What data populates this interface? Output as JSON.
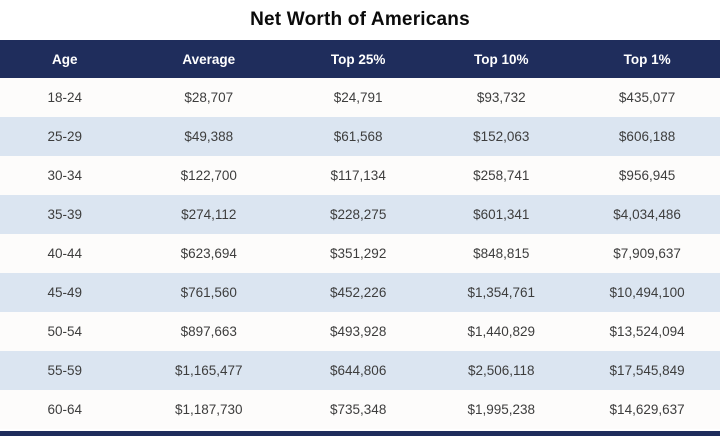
{
  "title": "Net Worth of Americans",
  "chart_data": {
    "type": "table",
    "title": "Net Worth of Americans",
    "columns": [
      "Age",
      "Average",
      "Top 25%",
      "Top 10%",
      "Top 1%"
    ],
    "rows": [
      [
        "18-24",
        "$28,707",
        "$24,791",
        "$93,732",
        "$435,077"
      ],
      [
        "25-29",
        "$49,388",
        "$61,568",
        "$152,063",
        "$606,188"
      ],
      [
        "30-34",
        "$122,700",
        "$117,134",
        "$258,741",
        "$956,945"
      ],
      [
        "35-39",
        "$274,112",
        "$228,275",
        "$601,341",
        "$4,034,486"
      ],
      [
        "40-44",
        "$623,694",
        "$351,292",
        "$848,815",
        "$7,909,637"
      ],
      [
        "45-49",
        "$761,560",
        "$452,226",
        "$1,354,761",
        "$10,494,100"
      ],
      [
        "50-54",
        "$897,663",
        "$493,928",
        "$1,440,829",
        "$13,524,094"
      ],
      [
        "55-59",
        "$1,165,477",
        "$644,806",
        "$2,506,118",
        "$17,545,849"
      ],
      [
        "60-64",
        "$1,187,730",
        "$735,348",
        "$1,995,238",
        "$14,629,637"
      ]
    ]
  },
  "colors": {
    "header_bg": "#1f2d5c",
    "header_text": "#ffffff",
    "row_bg": "#fdfcfb",
    "row_alt_bg": "#dbe5f1",
    "cell_text": "#3d3d3d",
    "title_text": "#0b0b0b"
  }
}
